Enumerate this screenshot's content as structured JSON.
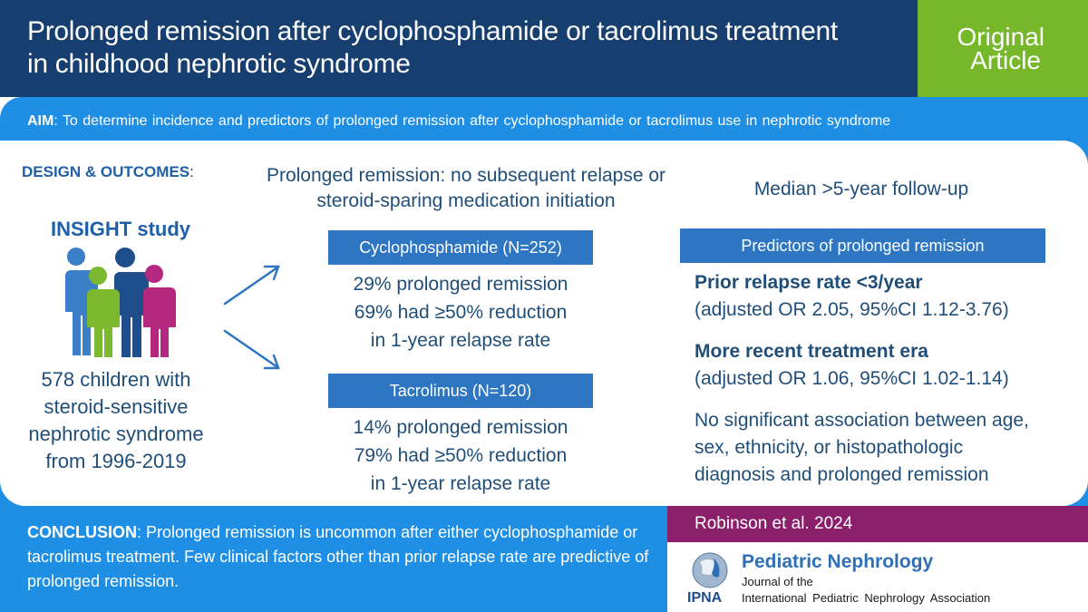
{
  "header": {
    "title_line1": "Prolonged remission after cyclophosphamide or tacrolimus treatment",
    "title_line2": "in childhood nephrotic syndrome",
    "badge_line1": "Original",
    "badge_line2": "Article"
  },
  "aim": {
    "label": "AIM",
    "text": ": To determine incidence and predictors of prolonged remission after cyclophosphamide or tacrolimus use in nephrotic syndrome"
  },
  "design": {
    "label": "DESIGN & OUTCOMES",
    "colon": ":",
    "study_name": "INSIGHT study",
    "population": "578 children with steroid-sensitive nephrotic syndrome from 1996-2019",
    "prolonged_remission_definition": "Prolonged remission: no subsequent relapse or steroid-sparing medication initiation",
    "follow_up": "Median >5-year follow-up"
  },
  "arms": [
    {
      "header": "Cyclophosphamide (N=252)",
      "result_line1": "29% prolonged remission",
      "result_line2": "69% had ≥50% reduction",
      "result_line3": "in 1-year relapse rate"
    },
    {
      "header": "Tacrolimus (N=120)",
      "result_line1": "14% prolonged remission",
      "result_line2": "79% had ≥50% reduction",
      "result_line3": "in 1-year relapse rate"
    }
  ],
  "predictors": {
    "header": "Predictors of prolonged remission",
    "p1_title": "Prior relapse rate <3/year",
    "p1_detail": "(adjusted OR 2.05, 95%CI 1.12-3.76)",
    "p2_title": "More recent treatment era",
    "p2_detail": "(adjusted OR 1.06, 95%CI 1.02-1.14)",
    "p3_text": "No significant association between age, sex, ethnicity, or histopathologic diagnosis and prolonged remission"
  },
  "conclusion": {
    "label": "CONCLUSION",
    "text": ": Prolonged remission is uncommon after either cyclophosphamide or tacrolimus treatment. Few clinical factors other than prior relapse rate are predictive of prolonged remission."
  },
  "reference": {
    "citation": "Robinson et al. 2024"
  },
  "journal": {
    "name": "Pediatric Nephrology",
    "sub1": "Journal of the",
    "sub2": "International Pediatric Nephrology Association",
    "logo_text": "IPNA"
  },
  "colors": {
    "header_navy": "#163e6e",
    "badge_green": "#76b82a",
    "panel_blue": "#1f8fe6",
    "box_blue": "#2e75c2",
    "reference_magenta": "#8b1f6c",
    "person_blue": "#3a7fc8",
    "person_green": "#7bb82e",
    "person_navy": "#1f4e8c",
    "person_magenta": "#b5287f"
  }
}
